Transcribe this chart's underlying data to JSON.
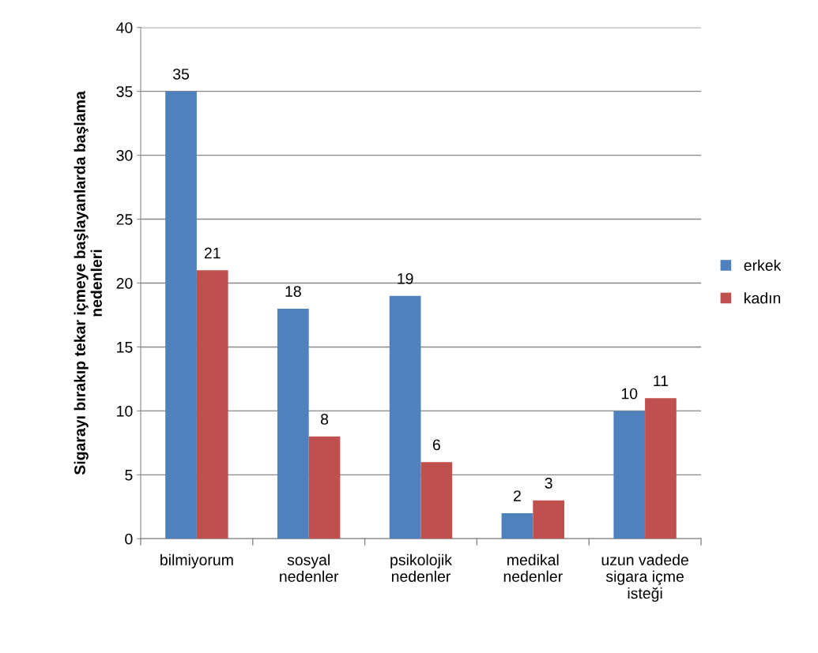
{
  "chart_data": {
    "type": "bar",
    "ylabel": "Sigarayı bırakıp tekar içmeye başlayanlarda başlama\nnedenleri",
    "categories": [
      "bilmiyorum",
      "sosyal\nnedenler",
      "psikolojik\nnedenler",
      "medikal\nnedenler",
      "uzun vadede\nsigara içme\nisteği"
    ],
    "series": [
      {
        "name": "erkek",
        "color": "#4f81bd",
        "values": [
          35,
          18,
          19,
          2,
          10
        ]
      },
      {
        "name": "kadın",
        "color": "#c0504d",
        "values": [
          21,
          8,
          6,
          3,
          11
        ]
      }
    ],
    "ylim": [
      0,
      40
    ],
    "yticks": [
      0,
      5,
      10,
      15,
      20,
      25,
      30,
      35,
      40
    ],
    "grid": "y",
    "legend": "right",
    "data_labels": true
  }
}
